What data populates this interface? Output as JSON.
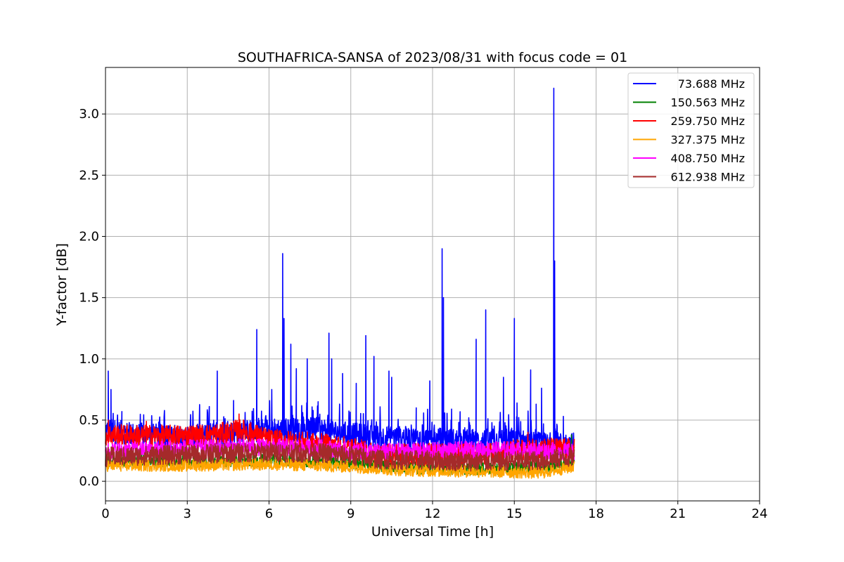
{
  "chart_data": {
    "type": "line",
    "title": "SOUTHAFRICA-SANSA of 2023/08/31 with focus code = 01",
    "xlabel": "Universal Time [h]",
    "ylabel": "Y-factor [dB]",
    "xlim": [
      0,
      24
    ],
    "ylim": [
      -0.16,
      3.38
    ],
    "xticks": [
      0,
      3,
      6,
      9,
      12,
      15,
      18,
      21,
      24
    ],
    "yticks": [
      0.0,
      0.5,
      1.0,
      1.5,
      2.0,
      2.5,
      3.0
    ],
    "xtick_labels": [
      "0",
      "3",
      "6",
      "9",
      "12",
      "15",
      "18",
      "21",
      "24"
    ],
    "ytick_labels": [
      "0.0",
      "0.5",
      "1.0",
      "1.5",
      "2.0",
      "2.5",
      "3.0"
    ],
    "grid": true,
    "legend_position": "top-right",
    "data_time_range": [
      0,
      17.2
    ],
    "series": [
      {
        "name": "73.688 MHz",
        "color": "#0000ff",
        "profile": [
          [
            0,
            0.42
          ],
          [
            1,
            0.38
          ],
          [
            3,
            0.36
          ],
          [
            4,
            0.38
          ],
          [
            5,
            0.4
          ],
          [
            6,
            0.42
          ],
          [
            8,
            0.42
          ],
          [
            9,
            0.38
          ],
          [
            10,
            0.36
          ],
          [
            12,
            0.34
          ],
          [
            13,
            0.33
          ],
          [
            15,
            0.33
          ],
          [
            16,
            0.3
          ],
          [
            17.2,
            0.3
          ]
        ],
        "spikes": [
          [
            0.1,
            0.9
          ],
          [
            0.2,
            0.75
          ],
          [
            0.6,
            0.57
          ],
          [
            3.8,
            0.55
          ],
          [
            4.1,
            0.9
          ],
          [
            4.7,
            0.66
          ],
          [
            5.55,
            1.24
          ],
          [
            6.1,
            0.75
          ],
          [
            6.5,
            1.86
          ],
          [
            6.55,
            1.33
          ],
          [
            6.8,
            1.12
          ],
          [
            7.0,
            0.92
          ],
          [
            7.4,
            1.0
          ],
          [
            7.8,
            0.65
          ],
          [
            8.2,
            1.21
          ],
          [
            8.3,
            1.0
          ],
          [
            8.7,
            0.88
          ],
          [
            9.2,
            0.8
          ],
          [
            9.55,
            1.19
          ],
          [
            9.85,
            1.02
          ],
          [
            10.4,
            0.9
          ],
          [
            10.5,
            0.85
          ],
          [
            11.4,
            0.6
          ],
          [
            11.9,
            0.82
          ],
          [
            12.35,
            1.9
          ],
          [
            12.4,
            1.5
          ],
          [
            12.7,
            0.59
          ],
          [
            13.6,
            1.16
          ],
          [
            13.95,
            1.4
          ],
          [
            14.6,
            0.85
          ],
          [
            15.0,
            1.33
          ],
          [
            15.1,
            0.64
          ],
          [
            15.6,
            0.91
          ],
          [
            15.8,
            0.63
          ],
          [
            16.0,
            0.76
          ],
          [
            16.45,
            3.21
          ],
          [
            16.48,
            1.8
          ],
          [
            16.8,
            0.53
          ]
        ]
      },
      {
        "name": "150.563 MHz",
        "color": "#008000",
        "profile": [
          [
            0,
            0.17
          ],
          [
            3,
            0.16
          ],
          [
            6,
            0.17
          ],
          [
            9,
            0.15
          ],
          [
            11,
            0.11
          ],
          [
            14,
            0.1
          ],
          [
            16,
            0.12
          ],
          [
            17.2,
            0.15
          ]
        ],
        "spikes": [
          [
            17.1,
            0.38
          ]
        ]
      },
      {
        "name": "259.750 MHz",
        "color": "#ff0000",
        "profile": [
          [
            0,
            0.38
          ],
          [
            2,
            0.37
          ],
          [
            4,
            0.38
          ],
          [
            5,
            0.42
          ],
          [
            6,
            0.34
          ],
          [
            8,
            0.3
          ],
          [
            9,
            0.27
          ],
          [
            10,
            0.22
          ],
          [
            12,
            0.22
          ],
          [
            14,
            0.22
          ],
          [
            15,
            0.25
          ],
          [
            16,
            0.27
          ],
          [
            17.2,
            0.26
          ]
        ],
        "spikes": [
          [
            0.1,
            0.5
          ],
          [
            1.5,
            0.49
          ],
          [
            4.9,
            0.55
          ],
          [
            15.5,
            0.4
          ]
        ]
      },
      {
        "name": "327.375 MHz",
        "color": "#ffa500",
        "profile": [
          [
            0,
            0.13
          ],
          [
            3,
            0.13
          ],
          [
            6,
            0.14
          ],
          [
            9,
            0.12
          ],
          [
            11,
            0.09
          ],
          [
            14,
            0.08
          ],
          [
            16,
            0.07
          ],
          [
            17.2,
            0.12
          ]
        ],
        "spikes": []
      },
      {
        "name": "408.750 MHz",
        "color": "#ff00ff",
        "profile": [
          [
            0,
            0.25
          ],
          [
            3,
            0.27
          ],
          [
            6,
            0.28
          ],
          [
            8,
            0.27
          ],
          [
            9,
            0.25
          ],
          [
            10,
            0.24
          ],
          [
            12,
            0.25
          ],
          [
            14,
            0.26
          ],
          [
            16,
            0.25
          ],
          [
            17.2,
            0.24
          ]
        ],
        "spikes": []
      },
      {
        "name": "612.938 MHz",
        "color": "#a52a2a",
        "profile": [
          [
            0,
            0.2
          ],
          [
            3,
            0.22
          ],
          [
            6,
            0.24
          ],
          [
            8,
            0.23
          ],
          [
            9,
            0.21
          ],
          [
            10,
            0.18
          ],
          [
            12,
            0.17
          ],
          [
            14,
            0.16
          ],
          [
            16,
            0.17
          ],
          [
            17.2,
            0.2
          ]
        ],
        "spikes": []
      }
    ]
  }
}
